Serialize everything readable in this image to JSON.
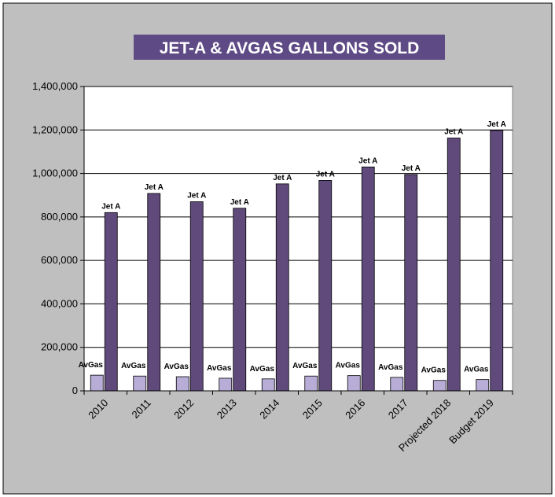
{
  "chart_data": {
    "type": "bar",
    "title": "JET-A & AVGAS GALLONS SOLD",
    "categories": [
      "2010",
      "2011",
      "2012",
      "2013",
      "2014",
      "2015",
      "2016",
      "2017",
      "Projected 2018",
      "Budget 2019"
    ],
    "series": [
      {
        "name": "AvGas",
        "values": [
          72000,
          68000,
          65000,
          58000,
          55000,
          68000,
          70000,
          62000,
          48000,
          52000
        ]
      },
      {
        "name": "Jet A",
        "values": [
          820000,
          908000,
          870000,
          840000,
          952000,
          968000,
          1030000,
          995000,
          1163000,
          1198000
        ]
      }
    ],
    "data_labels": {
      "AvGas": "AvGas",
      "Jet A": "Jet A"
    },
    "ylim": [
      0,
      1400000
    ],
    "y_ticks": [
      "0",
      "200,000",
      "400,000",
      "600,000",
      "800,000",
      "1,000,000",
      "1,200,000",
      "1,400,000"
    ],
    "grid": true,
    "legend": "none",
    "colors": {
      "outer_background": "#bfbfbf",
      "plot_background": "#ffffff",
      "title_background": "#5e4a85",
      "title_text": "#ffffff",
      "AvGas": "#b8add6",
      "Jet A": "#604a7b",
      "bar_border": "#000000"
    }
  }
}
